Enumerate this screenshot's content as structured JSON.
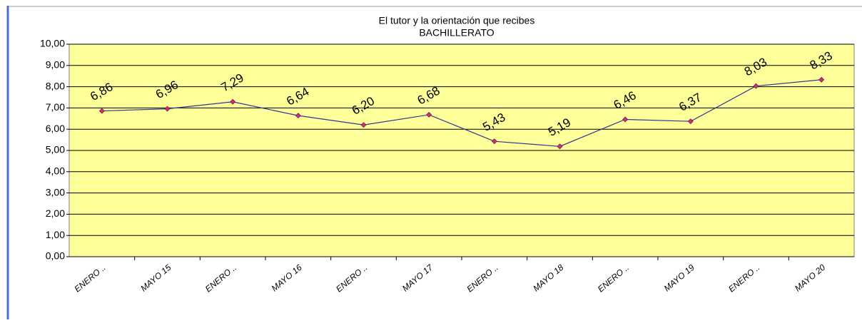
{
  "chart_data": {
    "type": "line",
    "title": "El tutor y la orientación que recibes",
    "subtitle": "BACHILLERATO",
    "categories": [
      "ENERO ..",
      "MAYO 15",
      "ENERO ..",
      "MAYO 16",
      "ENERO ..",
      "MAYO 17",
      "ENERO ..",
      "MAYO 18",
      "ENERO ..",
      "MAYO 19",
      "ENERO ..",
      "MAYO 20"
    ],
    "values": [
      6.86,
      6.96,
      7.29,
      6.64,
      6.2,
      6.68,
      5.43,
      5.19,
      6.46,
      6.37,
      8.03,
      8.33
    ],
    "value_labels": [
      "6,86",
      "6,96",
      "7,29",
      "6,64",
      "6,20",
      "6,68",
      "5,43",
      "5,19",
      "6,46",
      "6,37",
      "8,03",
      "8,33"
    ],
    "color": "#333399",
    "marker_color": "#cc3377",
    "plot_background": "#ffff99",
    "ylim": [
      0,
      10
    ],
    "yticks": [
      {
        "value": 0,
        "label": "0,00"
      },
      {
        "value": 1,
        "label": "1,00"
      },
      {
        "value": 2,
        "label": "2,00"
      },
      {
        "value": 3,
        "label": "3,00"
      },
      {
        "value": 4,
        "label": "4,00"
      },
      {
        "value": 5,
        "label": "5,00"
      },
      {
        "value": 6,
        "label": "6,00"
      },
      {
        "value": 7,
        "label": "7,00"
      },
      {
        "value": 8,
        "label": "8,00"
      },
      {
        "value": 9,
        "label": "9,00"
      },
      {
        "value": 10,
        "label": "10,00"
      }
    ],
    "grid": true
  }
}
